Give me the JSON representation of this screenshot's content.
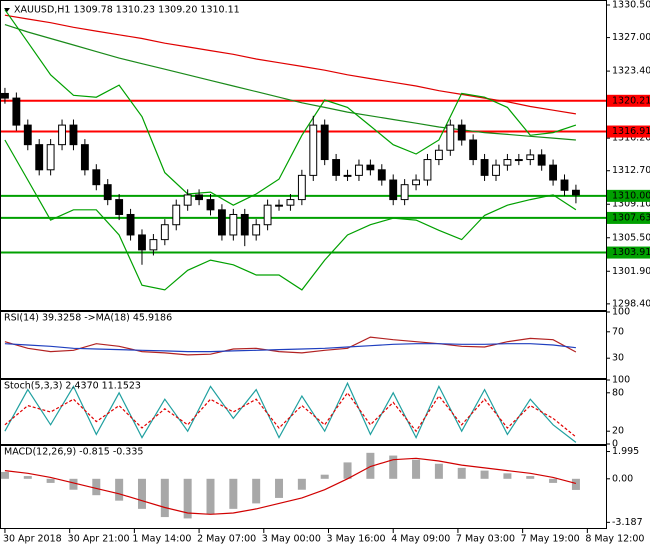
{
  "chart_data": [
    {
      "type": "candlestick",
      "title": "XAUUSD,H1  1309.78 1310.23 1309.20 1310.11",
      "x": [
        0,
        3,
        6,
        9,
        12,
        15,
        18,
        21,
        24,
        27,
        30,
        33,
        36,
        39,
        42,
        45,
        48,
        51,
        54,
        57,
        60,
        63,
        66,
        69,
        72,
        75,
        78,
        81,
        84,
        87,
        90,
        93,
        96,
        99,
        102,
        105,
        108,
        111,
        114,
        117,
        120,
        123,
        126,
        129,
        132,
        135,
        138,
        141,
        144,
        147,
        150
      ],
      "open": [
        1321.0,
        1320.5,
        1317.6,
        1315.5,
        1312.8,
        1315.5,
        1317.6,
        1315.5,
        1312.8,
        1311.2,
        1309.6,
        1308.0,
        1305.8,
        1304.2,
        1305.3,
        1306.9,
        1309.0,
        1310.1,
        1309.6,
        1308.5,
        1305.8,
        1308.0,
        1305.8,
        1306.9,
        1309.0,
        1309.0,
        1309.6,
        1312.2,
        1317.6,
        1313.9,
        1312.2,
        1312.2,
        1313.3,
        1312.8,
        1311.7,
        1309.6,
        1311.2,
        1311.7,
        1313.9,
        1314.9,
        1317.6,
        1316.0,
        1313.9,
        1312.2,
        1313.3,
        1313.9,
        1313.9,
        1314.4,
        1313.3,
        1311.7,
        1310.6
      ],
      "high": [
        1321.6,
        1321.1,
        1318.2,
        1316.1,
        1316.1,
        1318.2,
        1318.2,
        1316.1,
        1313.4,
        1311.8,
        1310.2,
        1308.6,
        1306.4,
        1305.9,
        1307.5,
        1309.6,
        1310.7,
        1310.7,
        1310.2,
        1309.1,
        1308.6,
        1308.6,
        1307.5,
        1309.6,
        1309.6,
        1310.2,
        1312.8,
        1318.6,
        1318.2,
        1314.5,
        1312.8,
        1313.9,
        1313.9,
        1313.4,
        1312.3,
        1311.8,
        1312.3,
        1314.5,
        1315.5,
        1318.2,
        1318.2,
        1316.6,
        1314.5,
        1313.9,
        1314.5,
        1314.5,
        1315.0,
        1315.0,
        1313.9,
        1312.3,
        1311.2
      ],
      "low": [
        1319.9,
        1317.0,
        1314.9,
        1312.2,
        1312.2,
        1314.9,
        1314.9,
        1312.2,
        1310.6,
        1309.0,
        1307.4,
        1305.2,
        1302.6,
        1303.6,
        1304.7,
        1306.3,
        1308.4,
        1309.0,
        1307.9,
        1305.2,
        1305.2,
        1304.6,
        1305.2,
        1306.3,
        1308.4,
        1308.4,
        1309.0,
        1311.6,
        1313.3,
        1311.6,
        1311.6,
        1311.6,
        1312.2,
        1311.1,
        1309.0,
        1309.0,
        1310.6,
        1311.1,
        1313.3,
        1314.3,
        1315.4,
        1313.3,
        1311.6,
        1311.6,
        1312.7,
        1313.3,
        1313.3,
        1312.7,
        1311.1,
        1310.0,
        1309.2
      ],
      "close": [
        1320.5,
        1317.6,
        1315.5,
        1312.8,
        1315.5,
        1317.6,
        1315.5,
        1312.8,
        1311.2,
        1309.6,
        1308.0,
        1305.8,
        1304.2,
        1305.3,
        1306.9,
        1309.0,
        1310.1,
        1309.6,
        1308.5,
        1305.8,
        1308.0,
        1305.8,
        1306.9,
        1309.0,
        1309.0,
        1309.6,
        1312.2,
        1317.6,
        1313.9,
        1312.2,
        1312.2,
        1313.3,
        1312.8,
        1311.7,
        1309.6,
        1311.2,
        1311.7,
        1313.9,
        1314.9,
        1317.6,
        1316.0,
        1313.9,
        1312.2,
        1313.3,
        1313.9,
        1313.9,
        1314.4,
        1313.3,
        1311.7,
        1310.6,
        1310.1
      ],
      "overlays": {
        "x": [
          0,
          6,
          12,
          18,
          24,
          30,
          36,
          42,
          48,
          54,
          60,
          66,
          72,
          78,
          84,
          90,
          96,
          102,
          108,
          114,
          120,
          126,
          132,
          138,
          144,
          150
        ],
        "series": [
          {
            "color": "#e00000",
            "values": [
              1329.4,
              1329.0,
              1328.6,
              1328.1,
              1327.7,
              1327.3,
              1326.9,
              1326.4,
              1326.0,
              1325.6,
              1325.2,
              1324.7,
              1324.3,
              1323.9,
              1323.5,
              1323.0,
              1322.6,
              1322.2,
              1321.8,
              1321.3,
              1320.9,
              1320.5,
              1320.1,
              1319.6,
              1319.2,
              1318.8
            ]
          },
          {
            "color": "#1a8a1a",
            "values": [
              1328.4,
              1327.6,
              1326.9,
              1326.2,
              1325.5,
              1324.8,
              1324.2,
              1323.6,
              1323.0,
              1322.4,
              1321.8,
              1321.2,
              1320.6,
              1320.0,
              1319.5,
              1319.0,
              1318.6,
              1318.2,
              1317.8,
              1317.4,
              1317.1,
              1316.8,
              1316.6,
              1316.4,
              1316.2,
              1316.0
            ]
          },
          {
            "color": "#00a000",
            "values": [
              1330.0,
              1326.5,
              1323.0,
              1320.8,
              1320.6,
              1321.9,
              1318.5,
              1312.5,
              1310.2,
              1310.4,
              1309.0,
              1310.2,
              1311.8,
              1316.5,
              1320.3,
              1319.5,
              1317.5,
              1315.5,
              1314.5,
              1316.0,
              1321.0,
              1320.6,
              1319.5,
              1316.5,
              1316.8,
              1317.6
            ]
          },
          {
            "color": "#00a000",
            "values": [
              1316.0,
              1311.7,
              1307.4,
              1308.5,
              1308.5,
              1305.8,
              1300.4,
              1299.9,
              1302.0,
              1303.1,
              1302.6,
              1301.5,
              1301.5,
              1299.9,
              1303.1,
              1305.8,
              1306.9,
              1307.6,
              1307.4,
              1306.3,
              1305.3,
              1307.9,
              1309.0,
              1309.6,
              1310.1,
              1308.5
            ]
          }
        ]
      },
      "levels": [
        {
          "value": 1320.21,
          "label": "1320.21",
          "color": "#ff0000"
        },
        {
          "value": 1316.91,
          "label": "1316.91",
          "color": "#ff0000"
        },
        {
          "value": 1310.0,
          "label": "1310.00",
          "color": "#00a000"
        },
        {
          "value": 1307.63,
          "label": "1307.63",
          "color": "#00a000"
        },
        {
          "value": 1303.91,
          "label": "1303.91",
          "color": "#00a000"
        }
      ],
      "ylim": [
        1297.74,
        1330.93
      ],
      "yticks": [
        {
          "value": 1330.5,
          "label": "1330.50"
        },
        {
          "value": 1327.0,
          "label": "1327.00"
        },
        {
          "value": 1323.4,
          "label": "1323.40"
        },
        {
          "value": 1316.2,
          "label": "1316.20"
        },
        {
          "value": 1312.7,
          "label": "1312.70"
        },
        {
          "value": 1309.1,
          "label": "1309.10"
        },
        {
          "value": 1305.5,
          "label": "1305.50"
        },
        {
          "value": 1301.9,
          "label": "1301.90"
        },
        {
          "value": 1298.4,
          "label": "1298.40"
        }
      ],
      "xlim": [
        -1.3,
        157.9
      ],
      "xticks": [
        {
          "value": 0,
          "label": "30 Apr 2018"
        },
        {
          "value": 17,
          "label": "30 Apr 21:00"
        },
        {
          "value": 34,
          "label": "1 May 14:00"
        },
        {
          "value": 51,
          "label": "2 May 07:00"
        },
        {
          "value": 68,
          "label": "3 May 00:00"
        },
        {
          "value": 85,
          "label": "3 May 16:00"
        },
        {
          "value": 102,
          "label": "4 May 09:00"
        },
        {
          "value": 119,
          "label": "7 May 03:00"
        },
        {
          "value": 136,
          "label": "7 May 19:00"
        },
        {
          "value": 153,
          "label": "8 May 12:00"
        }
      ]
    },
    {
      "type": "line",
      "title": "RSI(14) 39.3258 ->MA(18) 45.9186",
      "x": [
        0,
        6,
        12,
        18,
        24,
        30,
        36,
        42,
        48,
        54,
        60,
        66,
        72,
        78,
        84,
        90,
        96,
        102,
        108,
        114,
        120,
        126,
        132,
        138,
        144,
        150
      ],
      "series": [
        {
          "color": "#b22222",
          "values": [
            55,
            45,
            40,
            42,
            52,
            48,
            40,
            38,
            35,
            36,
            44,
            45,
            40,
            38,
            42,
            45,
            62,
            58,
            55,
            52,
            48,
            47,
            55,
            60,
            58,
            39.3258
          ]
        },
        {
          "color": "#1f3fbf",
          "values": [
            52,
            50,
            48,
            45,
            44,
            43,
            42,
            41,
            40,
            40,
            41,
            42,
            43,
            44,
            45,
            47,
            49,
            51,
            52,
            52,
            51,
            51,
            52,
            52,
            50,
            45.9186
          ]
        }
      ],
      "ylim": [
        0,
        100
      ],
      "yticks": [
        100,
        70,
        30
      ]
    },
    {
      "type": "line",
      "title": "Stoch(5,3,3) 2.4370 11.1523",
      "x": [
        0,
        6,
        12,
        18,
        24,
        30,
        36,
        42,
        48,
        54,
        60,
        66,
        72,
        78,
        84,
        90,
        96,
        102,
        108,
        114,
        120,
        126,
        132,
        138,
        144,
        150
      ],
      "series": [
        {
          "color": "#20a0a0",
          "values": [
            20,
            85,
            30,
            90,
            15,
            80,
            10,
            70,
            20,
            90,
            40,
            85,
            10,
            75,
            20,
            95,
            15,
            80,
            10,
            90,
            20,
            85,
            15,
            70,
            30,
            2.437
          ]
        },
        {
          "color": "#e00000",
          "dashed": true,
          "values": [
            30,
            60,
            50,
            70,
            35,
            60,
            25,
            55,
            30,
            70,
            50,
            70,
            25,
            60,
            30,
            80,
            30,
            65,
            20,
            75,
            30,
            70,
            25,
            60,
            40,
            11.1523
          ]
        }
      ],
      "ylim": [
        0,
        100
      ],
      "yticks": [
        100,
        80,
        20,
        0
      ]
    },
    {
      "type": "macd",
      "title": "MACD(12,26,9) -0.815 -0.335",
      "x": [
        0,
        6,
        12,
        18,
        24,
        30,
        36,
        42,
        48,
        54,
        60,
        66,
        72,
        78,
        84,
        90,
        96,
        102,
        108,
        114,
        120,
        126,
        132,
        138,
        144,
        150
      ],
      "series": [
        {
          "color": "#a8a8a8",
          "histogram": true,
          "values": [
            0.5,
            0.2,
            -0.3,
            -0.8,
            -1.2,
            -1.6,
            -2.2,
            -2.8,
            -2.9,
            -2.6,
            -2.2,
            -1.8,
            -1.4,
            -0.8,
            0.3,
            1.2,
            1.9,
            1.7,
            1.4,
            1.1,
            0.8,
            0.6,
            0.4,
            0.2,
            -0.3,
            -0.815
          ]
        },
        {
          "color": "#d00000",
          "values": [
            0.6,
            0.4,
            0.1,
            -0.3,
            -0.7,
            -1.1,
            -1.6,
            -2.1,
            -2.5,
            -2.6,
            -2.5,
            -2.2,
            -1.8,
            -1.4,
            -0.8,
            0.0,
            0.9,
            1.4,
            1.5,
            1.3,
            1.0,
            0.8,
            0.6,
            0.4,
            0.1,
            -0.335
          ]
        }
      ],
      "ylim": [
        -3.6,
        2.4
      ],
      "yticks": [
        1.995,
        {
          "value": 0,
          "label": "0.00"
        },
        -3.187
      ]
    }
  ]
}
